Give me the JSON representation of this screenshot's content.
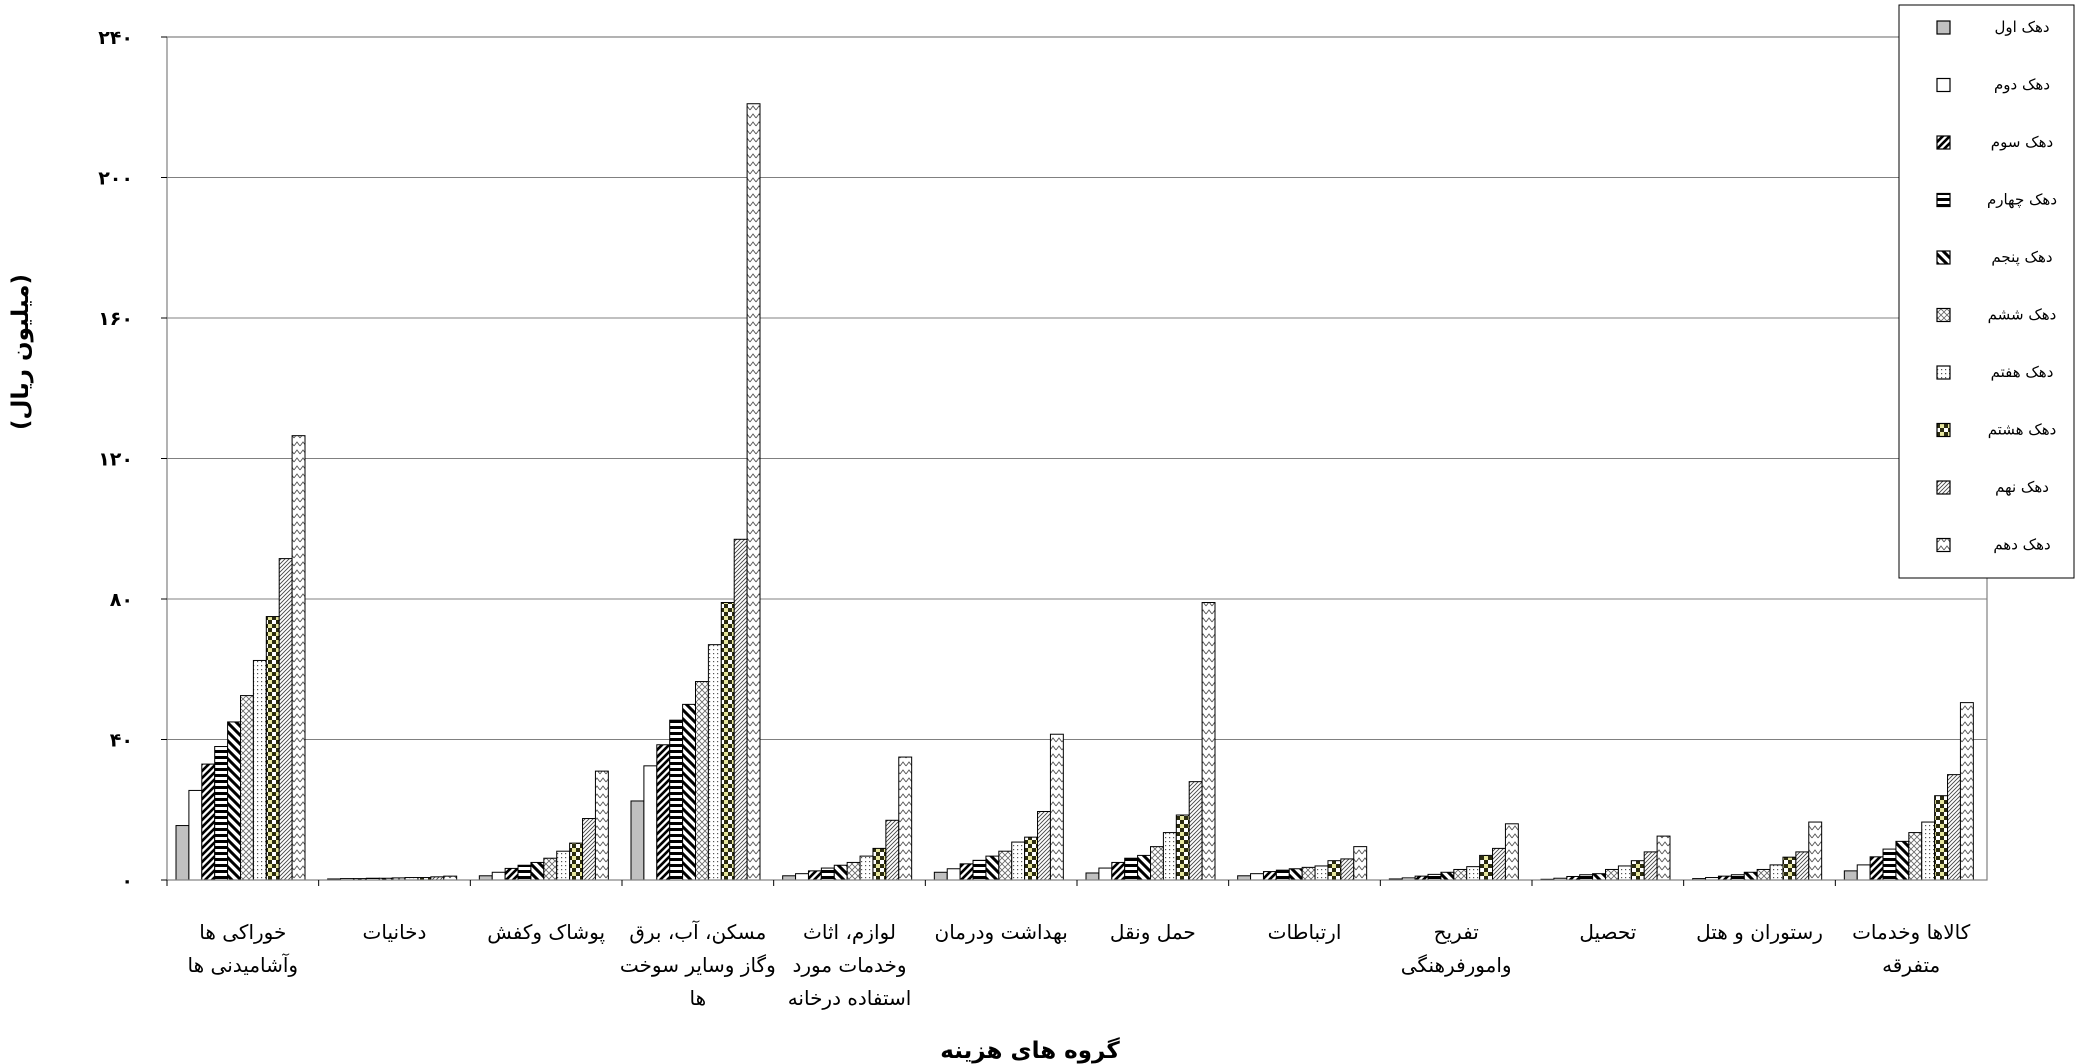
{
  "chart_data": {
    "type": "bar",
    "xlabel": "گروه های هزینه",
    "ylabel": "(میلیون ریال)",
    "ylim": [
      0,
      240
    ],
    "yticks": [
      0,
      40,
      80,
      120,
      160,
      200,
      240
    ],
    "ytick_labels": [
      "۰",
      "۴۰",
      "۸۰",
      "۱۲۰",
      "۱۶۰",
      "۲۰۰",
      "۲۴۰"
    ],
    "grid": true,
    "legend_position": "top-right",
    "categories": [
      [
        "خوراکی ها",
        "وآشامیدنی ها"
      ],
      [
        "دخانیات"
      ],
      [
        "پوشاک وکفش"
      ],
      [
        "مسکن، آب، برق",
        "وگاز وسایر سوخت",
        "ها"
      ],
      [
        "لوازم، اثاث",
        "وخدمات مورد",
        "استفاده درخانه"
      ],
      [
        "بهداشت ودرمان"
      ],
      [
        "حمل ونقل"
      ],
      [
        "ارتباطات"
      ],
      [
        "تفریح",
        "وامورفرهنگی"
      ],
      [
        "تحصیل"
      ],
      [
        "رستوران و هتل"
      ],
      [
        "کالاها وخدمات",
        "متفرقه"
      ]
    ],
    "series": [
      {
        "name": "دهک  اول",
        "pattern": "solid-gray",
        "values": [
          15.5,
          0.3,
          1.2,
          22.5,
          1.2,
          2.2,
          2.0,
          1.2,
          0.3,
          0.2,
          0.4,
          2.6
        ]
      },
      {
        "name": "دهک  دوم",
        "pattern": "white",
        "values": [
          25.5,
          0.4,
          2.2,
          32.5,
          1.8,
          3.2,
          3.4,
          1.8,
          0.6,
          0.5,
          0.7,
          4.3
        ]
      },
      {
        "name": "دهک  سوم",
        "pattern": "diagonal-bold",
        "values": [
          33.0,
          0.4,
          3.3,
          38.5,
          2.6,
          4.6,
          5.0,
          2.4,
          1.1,
          1.0,
          1.1,
          6.6
        ]
      },
      {
        "name": "دهک چهارم",
        "pattern": "horizontal",
        "values": [
          38.0,
          0.5,
          4.2,
          45.5,
          3.4,
          5.6,
          6.2,
          2.8,
          1.6,
          1.5,
          1.5,
          8.8
        ]
      },
      {
        "name": "دهک  پنجم",
        "pattern": "diagonal-wide",
        "values": [
          45.0,
          0.5,
          5.0,
          50.0,
          4.2,
          6.8,
          7.0,
          3.2,
          2.2,
          1.8,
          2.2,
          11.0
        ]
      },
      {
        "name": "دهک  ششم",
        "pattern": "cross-light",
        "values": [
          52.5,
          0.6,
          6.2,
          56.5,
          5.0,
          8.2,
          9.5,
          3.6,
          3.0,
          3.0,
          3.0,
          13.5
        ]
      },
      {
        "name": "دهک  هفتم",
        "pattern": "dotted",
        "values": [
          62.5,
          0.7,
          8.2,
          67.0,
          6.8,
          10.8,
          13.5,
          4.0,
          3.8,
          4.0,
          4.3,
          16.5
        ]
      },
      {
        "name": "دهک هشتم",
        "pattern": "checker-dark",
        "values": [
          75.0,
          0.7,
          10.5,
          79.0,
          9.0,
          12.2,
          18.5,
          5.5,
          7.0,
          5.5,
          6.5,
          24.0
        ]
      },
      {
        "name": "دهک  نهم",
        "pattern": "diagonal-fine",
        "values": [
          91.5,
          0.9,
          17.5,
          97.0,
          17.0,
          19.5,
          28.0,
          6.0,
          9.0,
          8.0,
          8.0,
          30.0
        ]
      },
      {
        "name": "دهک دهم",
        "pattern": "zigzag",
        "values": [
          126.5,
          1.1,
          31.0,
          221.0,
          35.0,
          41.5,
          79.0,
          9.5,
          16.0,
          12.5,
          16.5,
          50.5
        ]
      }
    ]
  }
}
